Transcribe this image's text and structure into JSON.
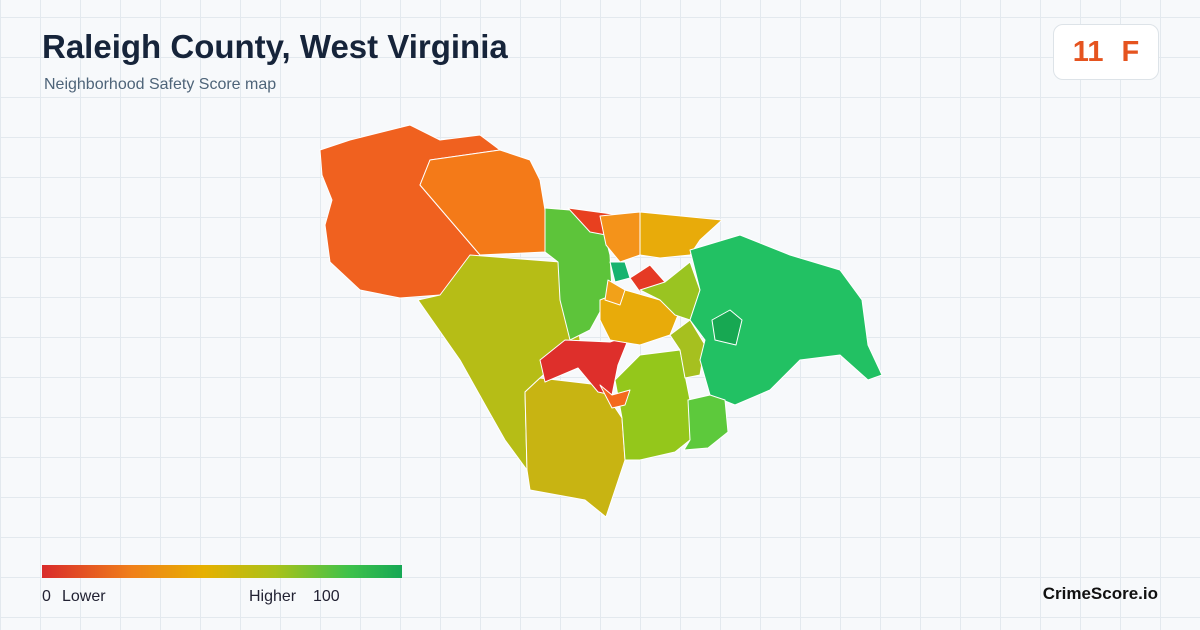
{
  "header": {
    "title": "Raleigh County, West Virginia",
    "subtitle": "Neighborhood Safety Score map"
  },
  "score": {
    "value": "11",
    "grade": "F"
  },
  "legend": {
    "min": "0",
    "min_label": "Lower",
    "max_label": "Higher",
    "max": "100"
  },
  "brand": "CrimeScore.io"
}
